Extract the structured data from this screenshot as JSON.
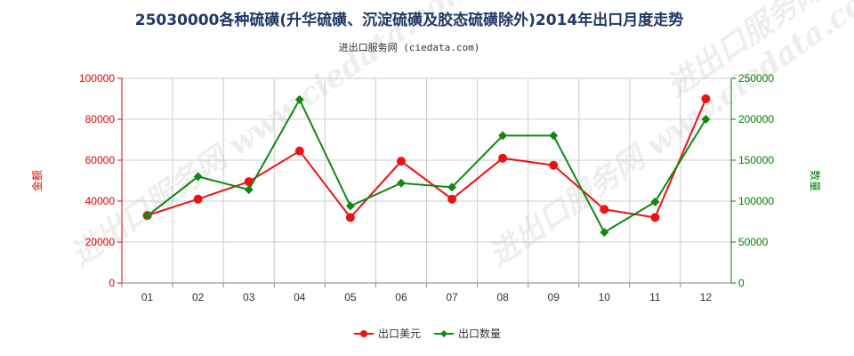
{
  "title": "25030000各种硫磺(升华硫磺、沉淀硫磺及胶态硫磺除外)2014年出口月度走势",
  "subtitle": "进出口服务网 (ciedata.com)",
  "watermark": "进出口服务网 www.ciedata.com",
  "colors": {
    "title": "#1f3864",
    "left_axis": "#e60000",
    "right_axis": "#008000",
    "series_value": "#ee1111",
    "series_qty": "#118811",
    "grid": "#cccccc"
  },
  "chart_data": {
    "type": "line",
    "categories": [
      "01",
      "02",
      "03",
      "04",
      "05",
      "06",
      "07",
      "08",
      "09",
      "10",
      "11",
      "12"
    ],
    "series": [
      {
        "name": "出口美元",
        "axis": "left",
        "values": [
          33000,
          41000,
          49500,
          64500,
          32000,
          59500,
          41000,
          61000,
          57500,
          36000,
          32000,
          90000
        ]
      },
      {
        "name": "出口数量",
        "axis": "right",
        "values": [
          82000,
          130000,
          114000,
          224000,
          94000,
          122000,
          117000,
          180000,
          180000,
          62000,
          99000,
          200000
        ]
      }
    ],
    "ylabel_left": "金额",
    "ylabel_right": "数量",
    "ylim_left": [
      0,
      100000
    ],
    "yticks_left": [
      "0",
      "20000",
      "40000",
      "60000",
      "80000",
      "100000"
    ],
    "ylim_right": [
      0,
      250000
    ],
    "yticks_right": [
      "0",
      "50000",
      "100000",
      "150000",
      "200000",
      "250000"
    ],
    "grid": true,
    "legend_position": "bottom-center"
  }
}
